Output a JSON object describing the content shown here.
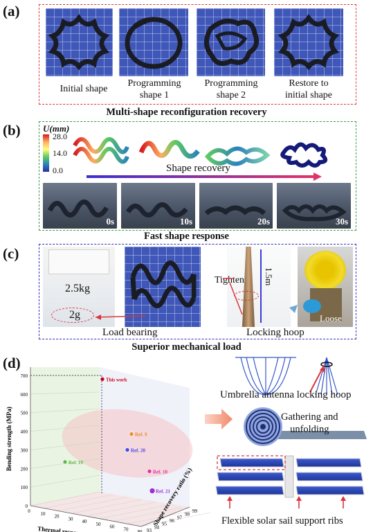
{
  "panel_a": {
    "letter": "(a)",
    "captions": [
      "Initial shape",
      "Programming\nshape 1",
      "Programming\nshape 2",
      "Restore to\ninitial shape"
    ],
    "title": "Multi-shape reconfiguration recovery"
  },
  "panel_b": {
    "letter": "(b)",
    "colorbar_label": "U(mm)",
    "colorbar_ticks": [
      "28.0",
      "14.0",
      "0.0"
    ],
    "arrow_label": "Shape recovery",
    "times": [
      "0s",
      "10s",
      "20s",
      "30s"
    ],
    "title": "Fast shape response"
  },
  "panel_c": {
    "letter": "(c)",
    "weight_label": "2.5kg",
    "mass_label": "2g",
    "tighten_label": "Tighten",
    "height_label": "1.5m",
    "loose_label": "Loose",
    "load_caption": "Load bearing",
    "hoop_caption": "Locking hoop",
    "title": "Superior mechanical load"
  },
  "panel_d": {
    "letter": "(d)",
    "antenna_caption": "Umbrella antenna locking hoop",
    "gather_caption": "Gathering and\nunfolding",
    "solar_caption": "Flexible solar sail support ribs"
  },
  "chart_data": {
    "type": "scatter",
    "xlabel": "Thermal response rate (s)",
    "ylabel": "Bending strength (MPa)",
    "zlabel": "Shape recovery ratio (%)",
    "x_ticks": [
      "0",
      "10",
      "20",
      "30",
      "40",
      "50",
      "60",
      "70",
      "80"
    ],
    "y_ticks": [
      "0",
      "100",
      "200",
      "300",
      "400",
      "500",
      "600",
      "700"
    ],
    "z_ticks": [
      "93",
      "94",
      "95",
      "96",
      "97",
      "98",
      "99"
    ],
    "ylim": [
      0,
      700
    ],
    "points": [
      {
        "label": "This work",
        "y": 680,
        "color": "#d0021b"
      },
      {
        "label": "Ref. 9",
        "y": 385,
        "color": "#f08a24"
      },
      {
        "label": "Ref. 20",
        "y": 300,
        "color": "#4a4adf"
      },
      {
        "label": "Ref. 19",
        "y": 235,
        "color": "#5dbb46"
      },
      {
        "label": "Ref. 10",
        "y": 185,
        "color": "#e0339a"
      },
      {
        "label": "Ref. 21",
        "y": 80,
        "color": "#9b30d9"
      }
    ]
  },
  "colors": {
    "frame_a": "#d9363e",
    "frame_b": "#3a9a48",
    "frame_c": "#2f2fb8"
  }
}
